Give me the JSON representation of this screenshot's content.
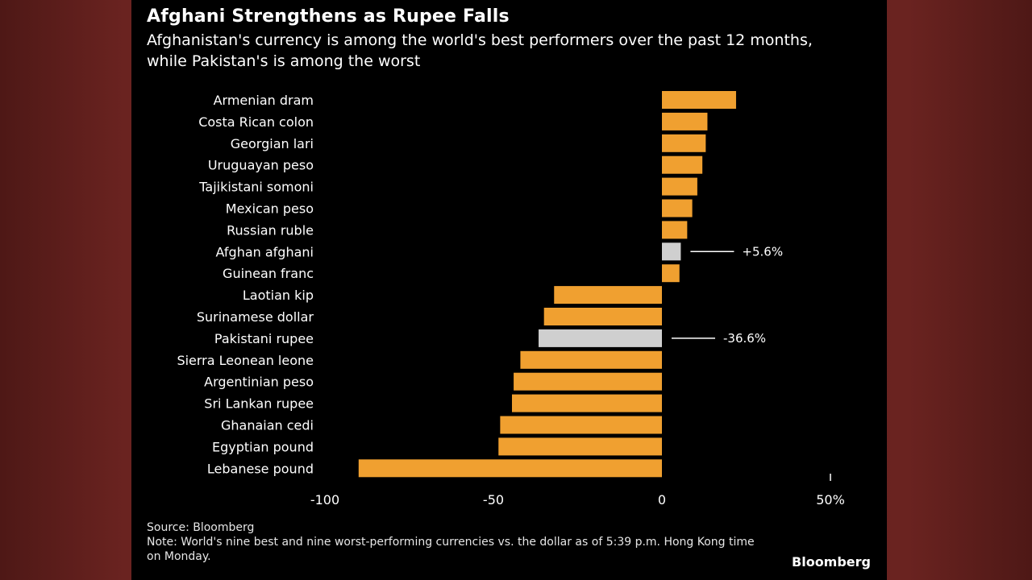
{
  "page": {
    "title": "Afghani Strengthens as Rupee Falls",
    "subtitle": "Afghanistan's currency is among the world's best performers over the past 12 months, while Pakistan's is among the worst",
    "source": "Source: Bloomberg",
    "note": "Note: World's nine best and nine worst-performing currencies vs. the dollar as of 5:39 p.m. Hong Kong time on Monday.",
    "brand": "Bloomberg"
  },
  "colors": {
    "bar": "#f0a030",
    "highlight": "#cfcfcf",
    "text": "#ffffff",
    "background": "#000000"
  },
  "chart_data": {
    "type": "bar",
    "orientation": "horizontal",
    "title": "Afghani Strengthens as Rupee Falls",
    "subtitle": "Afghanistan's currency is among the world's best performers over the past 12 months, while Pakistan's is among the worst",
    "categories": [
      "Armenian dram",
      "Costa Rican colon",
      "Georgian lari",
      "Uruguayan peso",
      "Tajikistani somoni",
      "Mexican peso",
      "Russian ruble",
      "Afghan afghani",
      "Guinean franc",
      "Laotian kip",
      "Surinamese dollar",
      "Pakistani rupee",
      "Sierra Leonean leone",
      "Argentinian peso",
      "Sri Lankan rupee",
      "Ghanaian cedi",
      "Egyptian pound",
      "Lebanese pound"
    ],
    "values": [
      22,
      13.5,
      13,
      12,
      10.5,
      9,
      7.5,
      5.6,
      5.2,
      -32,
      -35,
      -36.6,
      -42,
      -44,
      -44.5,
      -48,
      -48.5,
      -90
    ],
    "highlighted": [
      "Afghan afghani",
      "Pakistani rupee"
    ],
    "annotations": [
      {
        "category": "Afghan afghani",
        "text": "+5.6%"
      },
      {
        "category": "Pakistani rupee",
        "text": "-36.6%"
      }
    ],
    "xlim": [
      -100,
      50
    ],
    "xticks": [
      -100,
      -50,
      0,
      50
    ],
    "xtick_labels": [
      "-100",
      "-50",
      "0",
      "50%"
    ],
    "grid": false,
    "legend": "none"
  }
}
